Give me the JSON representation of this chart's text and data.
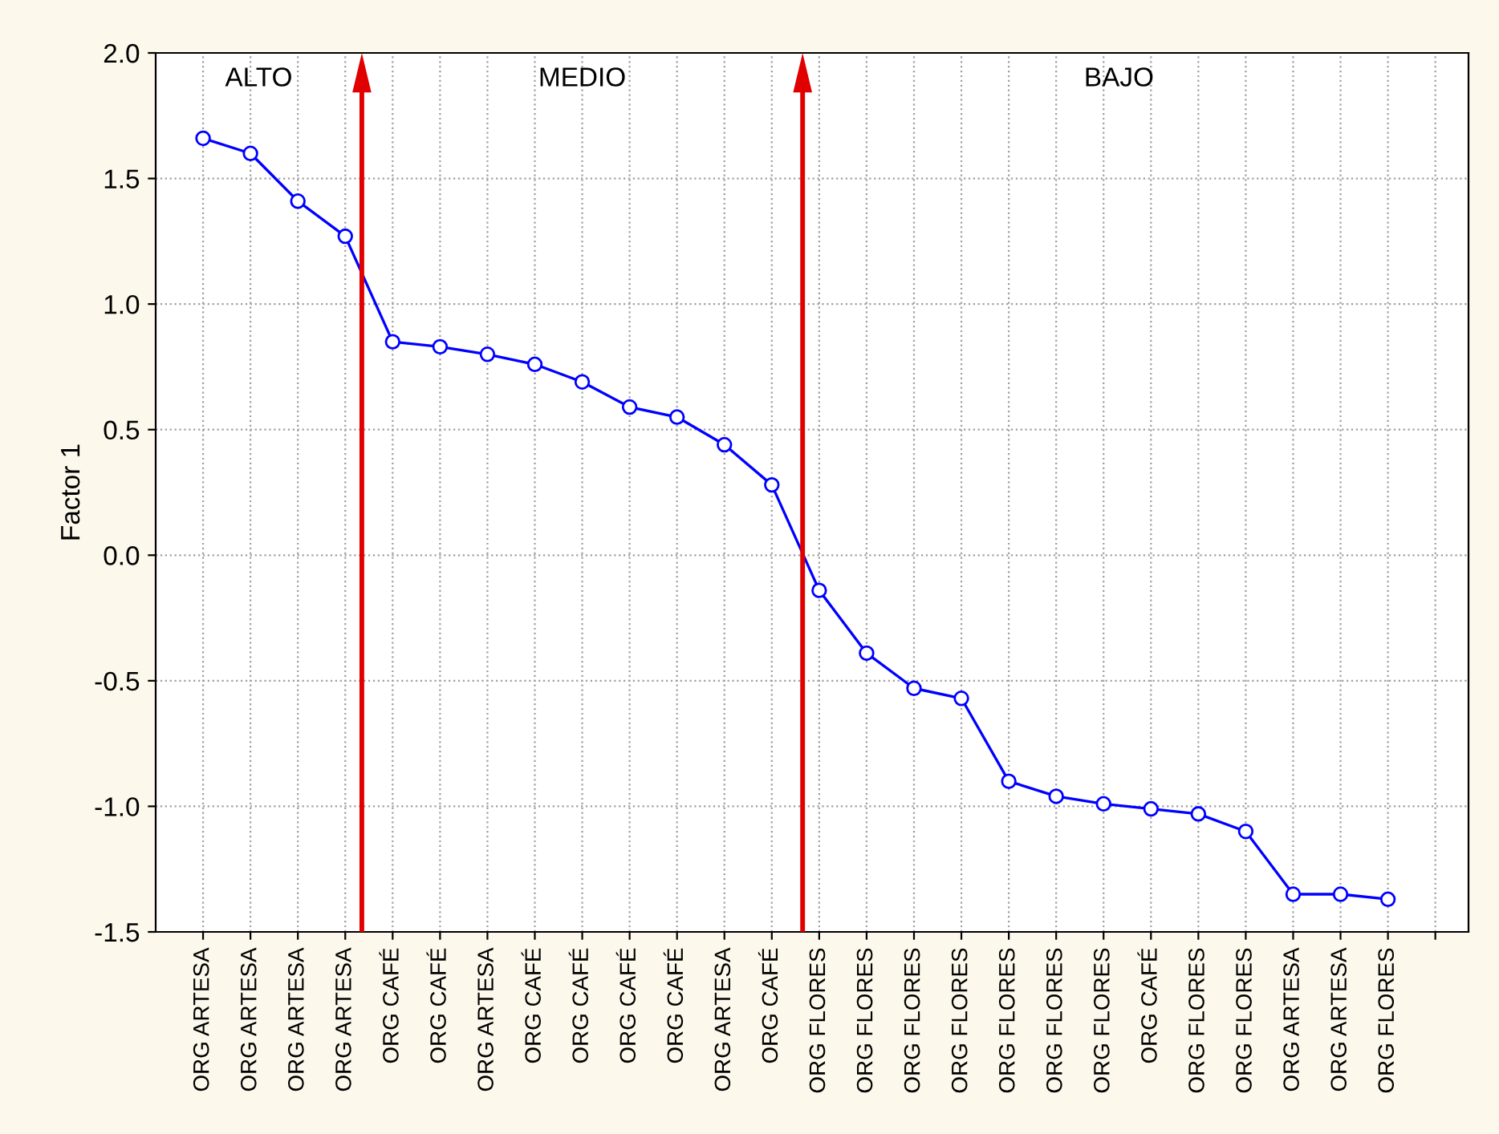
{
  "chart_data": {
    "type": "line",
    "ylabel": "Factor 1",
    "categories": [
      "ORG ARTESA",
      "ORG ARTESA",
      "ORG ARTESA",
      "ORG ARTESA",
      "ORG CAFÉ",
      "ORG CAFÉ",
      "ORG ARTESA",
      "ORG CAFÉ",
      "ORG CAFÉ",
      "ORG CAFÉ",
      "ORG CAFÉ",
      "ORG ARTESA",
      "ORG CAFÉ",
      "ORG FLORES",
      "ORG FLORES",
      "ORG FLORES",
      "ORG FLORES",
      "ORG FLORES",
      "ORG FLORES",
      "ORG FLORES",
      "ORG CAFÉ",
      "ORG FLORES",
      "ORG FLORES",
      "ORG ARTESA",
      "ORG ARTESA",
      "ORG FLORES",
      null
    ],
    "series": [
      {
        "color": "#0000ff",
        "values": [
          1.66,
          1.6,
          1.41,
          1.27,
          0.85,
          0.83,
          0.8,
          0.76,
          0.69,
          0.59,
          0.55,
          0.44,
          0.28,
          -0.14,
          -0.39,
          -0.53,
          -0.57,
          -0.9,
          -0.96,
          -0.99,
          -1.01,
          -1.03,
          -1.1,
          -1.35,
          -1.35,
          -1.37,
          null
        ]
      }
    ],
    "ylim": [
      -1.5,
      2.0
    ],
    "yticks": [
      {
        "value": -1.5,
        "label": "-1.5"
      },
      {
        "value": -1.0,
        "label": "-1.0"
      },
      {
        "value": -0.5,
        "label": "-0.5"
      },
      {
        "value": 0.0,
        "label": "0.0"
      },
      {
        "value": 0.5,
        "label": "0.5"
      },
      {
        "value": 1.0,
        "label": "1.0"
      },
      {
        "value": 1.5,
        "label": "1.5"
      },
      {
        "value": 2.0,
        "label": "2.0"
      }
    ],
    "annotations": [
      "ALTO",
      "MEDIO",
      "BAJO"
    ],
    "marker": "circle",
    "line_style": "solid",
    "grid": true
  }
}
